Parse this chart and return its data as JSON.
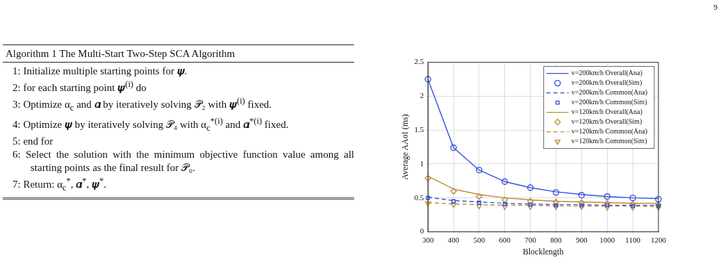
{
  "chart_data": [
    {
      "type": "other",
      "annotations": [
        "9"
      ]
    },
    {
      "type": "other",
      "title": "Algorithm 1 The Multi-Start Two-Step SCA Algorithm",
      "annotations": [
        "1: Initialize multiple starting points for 𝝍.",
        "2: for each starting point 𝝍$^{(i)}$ do",
        "3: Optimize α$_{c}$ and 𝜶 by iteratively solving 𝒫₂ with 𝝍$^{(i)}$ fixed.",
        "4: Optimize 𝝍 by iteratively solving 𝒫₄ with α$_{c}$$^{*(i)}$ and 𝜶$^{*(i)}$ fixed.",
        "5: end for",
        "6: Select the solution with the minimum objective function value among all starting points as the final result for 𝒫₀.",
        "7: Return: α$_{c}$$^{*}$, 𝜶$^{*}$, 𝝍$^{*}$."
      ]
    },
    {
      "type": "line",
      "xlabel": "Blocklength",
      "ylabel": "Average AAoI (ms)",
      "x": [
        300,
        400,
        500,
        600,
        700,
        800,
        900,
        1000,
        1100,
        1200
      ],
      "xlim": [
        300,
        1200
      ],
      "xticks": [
        300,
        400,
        500,
        600,
        700,
        800,
        900,
        1000,
        1100,
        1200
      ],
      "ylim": [
        0,
        2.5
      ],
      "yticks": [
        0,
        0.5,
        1,
        1.5,
        2,
        2.5
      ],
      "grid": true,
      "legend": "top right",
      "series": [
        {
          "name": "v=200km/h Overall(Ana)",
          "type": "line",
          "marker": "none",
          "line_style": "solid",
          "color": "#3050d8",
          "values": [
            2.25,
            1.24,
            0.91,
            0.74,
            0.65,
            0.59,
            0.55,
            0.52,
            0.5,
            0.49
          ]
        },
        {
          "name": "v=200km/h Overall(Sim)",
          "type": "scatter",
          "marker": "circle",
          "color": "#3050d8",
          "values": [
            2.25,
            1.24,
            0.91,
            0.74,
            0.65,
            0.58,
            0.54,
            0.52,
            0.5,
            0.48
          ]
        },
        {
          "name": "v=200km/h Common(Ana)",
          "type": "line",
          "marker": "none",
          "line_style": "dashed",
          "color": "#3050d8",
          "values": [
            0.51,
            0.46,
            0.44,
            0.42,
            0.41,
            0.4,
            0.4,
            0.39,
            0.39,
            0.39
          ]
        },
        {
          "name": "v=200km/h Common(Sim)",
          "type": "scatter",
          "marker": "square",
          "color": "#3050d8",
          "values": [
            0.5,
            0.45,
            0.43,
            0.41,
            0.4,
            0.39,
            0.39,
            0.39,
            0.38,
            0.38
          ]
        },
        {
          "name": "v=120km/h Overall(Ana)",
          "type": "line",
          "marker": "none",
          "line_style": "solid",
          "color": "#c08a3a",
          "values": [
            0.82,
            0.63,
            0.55,
            0.5,
            0.47,
            0.45,
            0.44,
            0.43,
            0.42,
            0.42
          ]
        },
        {
          "name": "v=120km/h Overall(Sim)",
          "type": "scatter",
          "marker": "diamond",
          "color": "#c08a3a",
          "values": [
            0.79,
            0.6,
            0.52,
            0.47,
            0.45,
            0.44,
            0.43,
            0.42,
            0.41,
            0.4
          ]
        },
        {
          "name": "v=120km/h Common(Ana)",
          "type": "line",
          "marker": "none",
          "line_style": "dashed",
          "color": "#c08a3a",
          "values": [
            0.43,
            0.41,
            0.4,
            0.39,
            0.39,
            0.38,
            0.38,
            0.38,
            0.38,
            0.37
          ]
        },
        {
          "name": "v=120km/h Common(Sim)",
          "type": "scatter",
          "marker": "triangle",
          "color": "#c08a3a",
          "values": [
            0.42,
            0.4,
            0.38,
            0.37,
            0.37,
            0.37,
            0.37,
            0.36,
            0.36,
            0.36
          ]
        }
      ]
    }
  ]
}
